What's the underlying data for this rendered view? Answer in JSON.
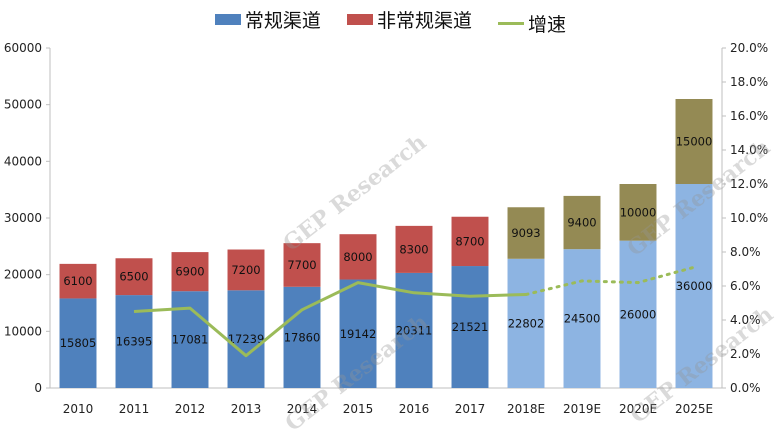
{
  "watermark": "GEP Research",
  "legend": {
    "regular": "常规渠道",
    "irregular": "非常规渠道",
    "growth": "增速"
  },
  "colors": {
    "regular_actual": "#4f81bd",
    "regular_forecast": "#8db4e2",
    "irregular_actual": "#c0504d",
    "irregular_forecast": "#948a54",
    "growth_line": "#9bbb59",
    "axis": "#bfbfbf"
  },
  "chart_data": {
    "type": "bar",
    "stacked": true,
    "categories": [
      "2010",
      "2011",
      "2012",
      "2013",
      "2014",
      "2015",
      "2016",
      "2017",
      "2018E",
      "2019E",
      "2020E",
      "2025E"
    ],
    "forecast_start_index": 8,
    "series": [
      {
        "name": "常规渠道",
        "values": [
          15805,
          16395,
          17081,
          17239,
          17860,
          19142,
          20311,
          21521,
          22802,
          24500,
          26000,
          36000
        ]
      },
      {
        "name": "非常规渠道",
        "values": [
          6100,
          6500,
          6900,
          7200,
          7700,
          8000,
          8300,
          8700,
          9093,
          9400,
          10000,
          15000
        ]
      }
    ],
    "bar_labels": {
      "regular": [
        "15805",
        "16395",
        "17081",
        "17239",
        "17860",
        "19142",
        "20311",
        "21521",
        "22802",
        "24500",
        "26000",
        "36000"
      ],
      "irregular": [
        "6100",
        "6500",
        "6900",
        "7200",
        "7700",
        "8000",
        "8300",
        "8700",
        "9093",
        "9400",
        "10000",
        "15000"
      ]
    },
    "growth_series": {
      "name": "增速",
      "axis": "right",
      "values": [
        null,
        4.5,
        4.7,
        1.9,
        4.6,
        6.2,
        5.6,
        5.4,
        5.5,
        6.3,
        6.2,
        7.1
      ],
      "solid_until_index": 8
    },
    "y_left": {
      "min": 0,
      "max": 60000,
      "ticks": [
        "0",
        "10000",
        "20000",
        "30000",
        "40000",
        "50000",
        "60000"
      ]
    },
    "y_right": {
      "min": 0,
      "max": 20,
      "ticks": [
        "0.0%",
        "2.0%",
        "4.0%",
        "6.0%",
        "8.0%",
        "10.0%",
        "12.0%",
        "14.0%",
        "16.0%",
        "18.0%",
        "20.0%"
      ]
    },
    "grid": true,
    "legend_position": "top-center"
  }
}
